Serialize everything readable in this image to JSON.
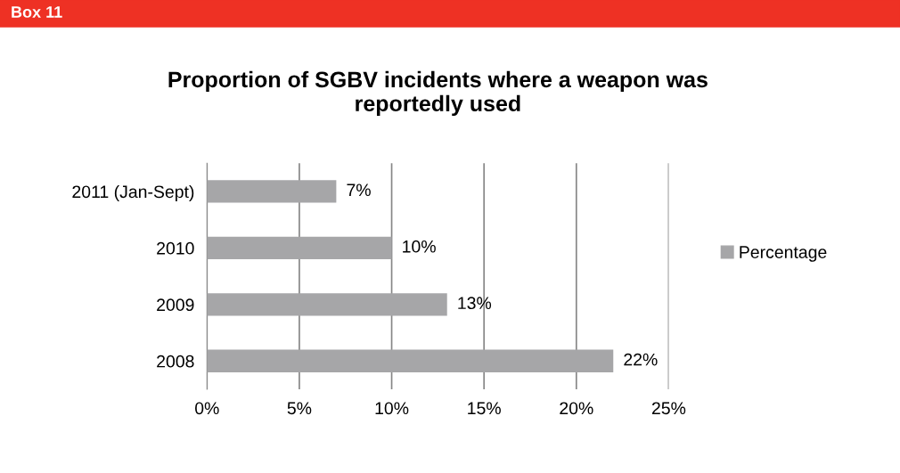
{
  "chart_data": {
    "type": "bar",
    "orientation": "horizontal",
    "title": "Proportion of SGBV incidents where a weapon was\nreportedly used",
    "annotations": [
      "Box 11"
    ],
    "categories": [
      "2011 (Jan-Sept)",
      "2010",
      "2009",
      "2008"
    ],
    "series": [
      {
        "name": "Percentage",
        "color": "#a6a6a8",
        "values": [
          7,
          10,
          13,
          22
        ],
        "value_labels": [
          "7%",
          "10%",
          "13%",
          "22%"
        ]
      }
    ],
    "xlim": [
      0,
      25
    ],
    "xticks": [
      {
        "value": 0,
        "label": "0%"
      },
      {
        "value": 5,
        "label": "5%"
      },
      {
        "value": 10,
        "label": "10%"
      },
      {
        "value": 15,
        "label": "15%"
      },
      {
        "value": 20,
        "label": "20%"
      },
      {
        "value": 25,
        "label": "25%"
      }
    ],
    "grid": "x",
    "legend": "right"
  }
}
